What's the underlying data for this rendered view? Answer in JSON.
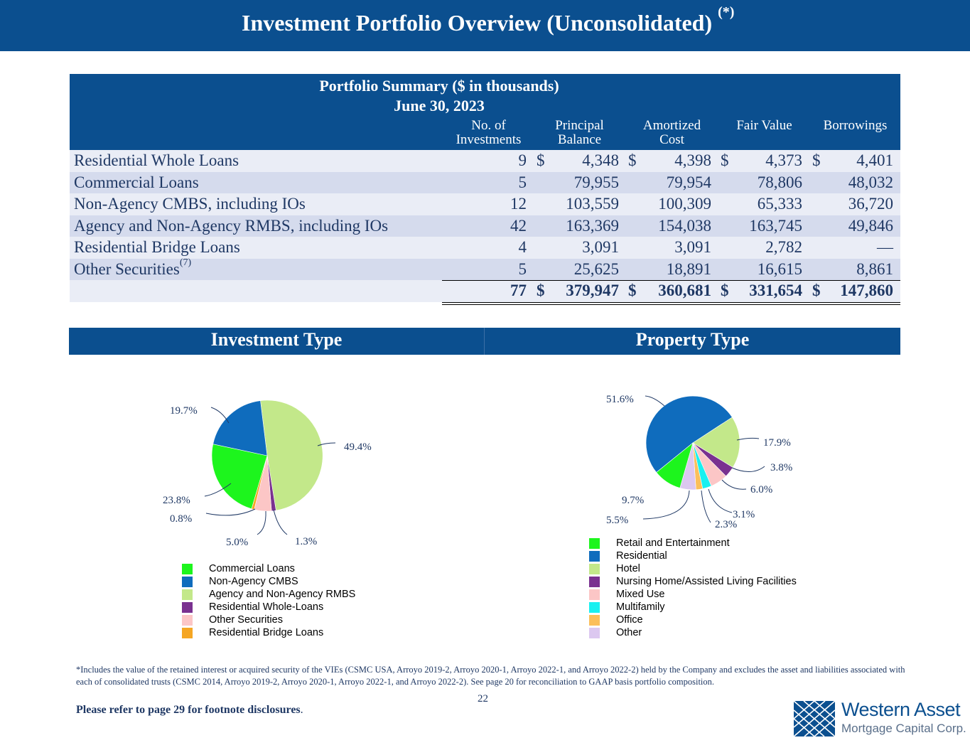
{
  "header": {
    "title": "Investment Portfolio Overview (Unconsolidated)",
    "title_sup": "(*)"
  },
  "table": {
    "title": "Portfolio Summary ($ in thousands)",
    "date": "June 30, 2023",
    "columns": [
      {
        "line1": "No. of",
        "line2": "Investments"
      },
      {
        "line1": "Principal",
        "line2": "Balance"
      },
      {
        "line1": "Amortized",
        "line2": "Cost"
      },
      {
        "line1": "",
        "line2": "Fair Value"
      },
      {
        "line1": "",
        "line2": "Borrowings"
      }
    ],
    "rows": [
      {
        "label": "Residential Whole Loans",
        "sup": "",
        "num": "9",
        "pb": "4,348",
        "ac": "4,398",
        "fv": "4,373",
        "bo": "4,401",
        "d": "$"
      },
      {
        "label": "Commercial Loans",
        "sup": "",
        "num": "5",
        "pb": "79,955",
        "ac": "79,954",
        "fv": "78,806",
        "bo": "48,032",
        "d": ""
      },
      {
        "label": "Non-Agency CMBS, including IOs",
        "sup": "",
        "num": "12",
        "pb": "103,559",
        "ac": "100,309",
        "fv": "65,333",
        "bo": "36,720",
        "d": ""
      },
      {
        "label": "Agency and Non-Agency RMBS, including IOs",
        "sup": "",
        "num": "42",
        "pb": "163,369",
        "ac": "154,038",
        "fv": "163,745",
        "bo": "49,846",
        "d": ""
      },
      {
        "label": "Residential Bridge Loans",
        "sup": "",
        "num": "4",
        "pb": "3,091",
        "ac": "3,091",
        "fv": "2,782",
        "bo": "—",
        "d": ""
      },
      {
        "label": "Other Securities",
        "sup": "(7)",
        "num": "5",
        "pb": "25,625",
        "ac": "18,891",
        "fv": "16,615",
        "bo": "8,861",
        "d": ""
      }
    ],
    "total": {
      "num": "77",
      "pb": "379,947",
      "ac": "360,681",
      "fv": "331,654",
      "bo": "147,860",
      "d": "$"
    }
  },
  "sections": {
    "left": "Investment Type",
    "right": "Property Type"
  },
  "chart_data": [
    {
      "type": "pie",
      "title": "Investment Type",
      "start_angle_deg": -7,
      "slices": [
        {
          "name": "Agency and Non-Agency RMBS",
          "value": 49.4,
          "label": "49.4%",
          "color": "#c3e88a"
        },
        {
          "name": "Residential Whole-Loans",
          "value": 1.3,
          "label": "1.3%",
          "color": "#7a3190"
        },
        {
          "name": "Other Securities",
          "value": 5.0,
          "label": "5.0%",
          "color": "#fcc6c6"
        },
        {
          "name": "Residential Bridge Loans",
          "value": 0.8,
          "label": "0.8%",
          "color": "#f5a623"
        },
        {
          "name": "Commercial Loans",
          "value": 23.8,
          "label": "23.8%",
          "color": "#1df51d"
        },
        {
          "name": "Non-Agency CMBS",
          "value": 19.7,
          "label": "19.7%",
          "color": "#0f6cbd"
        }
      ],
      "legend": [
        {
          "label": "Commercial Loans",
          "color": "#1df51d"
        },
        {
          "label": "Non-Agency CMBS",
          "color": "#0f6cbd"
        },
        {
          "label": "Agency and Non-Agency RMBS",
          "color": "#c3e88a"
        },
        {
          "label": "Residential Whole-Loans",
          "color": "#7a3190"
        },
        {
          "label": "Other Securities",
          "color": "#fcc6c6"
        },
        {
          "label": "Residential Bridge Loans",
          "color": "#f5a623"
        }
      ]
    },
    {
      "type": "pie",
      "title": "Property Type",
      "start_angle_deg": -129,
      "slices": [
        {
          "name": "Residential",
          "value": 51.6,
          "label": "51.6%",
          "color": "#0f6cbd"
        },
        {
          "name": "Hotel",
          "value": 17.9,
          "label": "17.9%",
          "color": "#c3e88a"
        },
        {
          "name": "Nursing Home/Assisted Living Facilities",
          "value": 3.8,
          "label": "3.8%",
          "color": "#7a3190"
        },
        {
          "name": "Mixed Use",
          "value": 6.0,
          "label": "6.0%",
          "color": "#fcc6c6"
        },
        {
          "name": "Multifamily",
          "value": 3.1,
          "label": "3.1%",
          "color": "#19f0f0"
        },
        {
          "name": "Office",
          "value": 2.3,
          "label": "2.3%",
          "color": "#fbbf5a"
        },
        {
          "name": "Other",
          "value": 5.5,
          "label": "5.5%",
          "color": "#dcc8f0"
        },
        {
          "name": "Retail and Entertainment",
          "value": 9.7,
          "label": "9.7%",
          "color": "#1df51d"
        }
      ],
      "legend": [
        {
          "label": "Retail and Entertainment",
          "color": "#1df51d"
        },
        {
          "label": "Residential",
          "color": "#0f6cbd"
        },
        {
          "label": "Hotel",
          "color": "#c3e88a"
        },
        {
          "label": "Nursing Home/Assisted Living Facilities",
          "color": "#7a3190"
        },
        {
          "label": "Mixed Use",
          "color": "#fcc6c6"
        },
        {
          "label": "Multifamily",
          "color": "#19f0f0"
        },
        {
          "label": "Office",
          "color": "#fbbf5a"
        },
        {
          "label": "Other",
          "color": "#dcc8f0"
        }
      ]
    }
  ],
  "footnote": "*Includes the value of the retained interest or acquired security of the VIEs (CSMC USA, Arroyo 2019-2, Arroyo 2020-1, Arroyo 2022-1, and Arroyo 2022-2) held by the Company and excludes the asset and liabilities associated with each of consolidated trusts (CSMC 2014, Arroyo 2019-2, Arroyo 2020-1, Arroyo 2022-1, and Arroyo 2022-2). See page 20 for reconciliation to GAAP basis portfolio composition.",
  "page_number": "22",
  "refer": {
    "text": "Please refer to page 29 for footnote disclosures",
    "period": "."
  },
  "logo": {
    "name": "Western Asset",
    "sub": "Mortgage Capital Corp."
  }
}
